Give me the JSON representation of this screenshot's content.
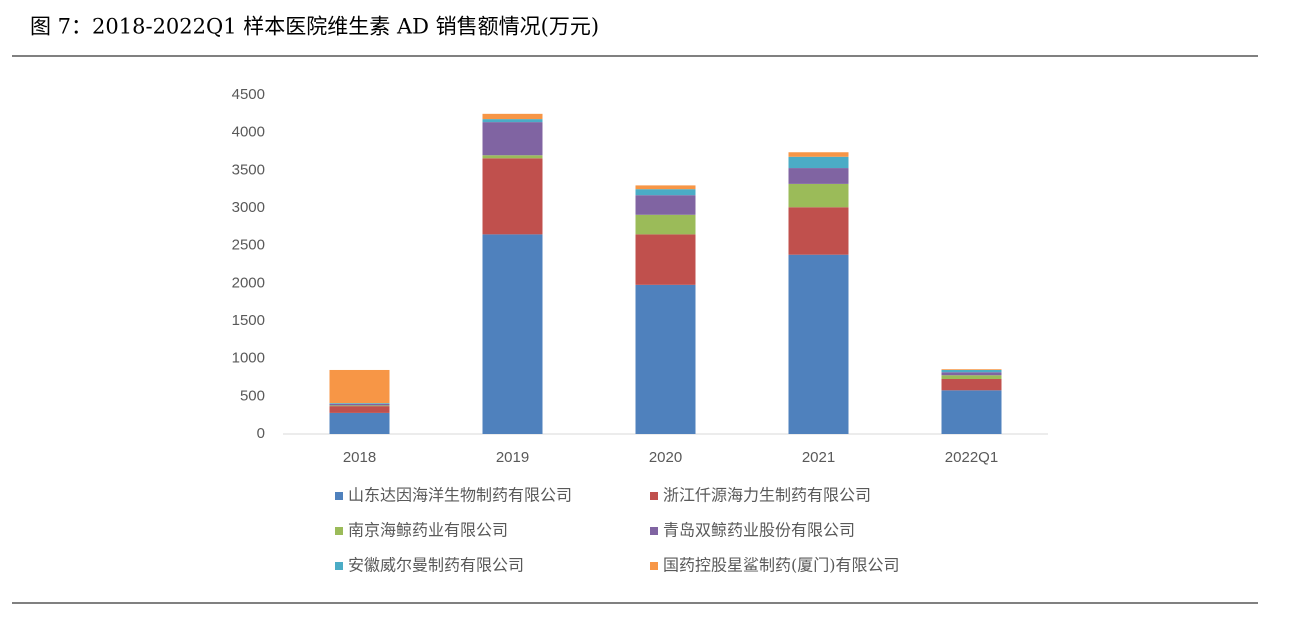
{
  "chart_data": {
    "type": "stacked_bar",
    "title": "图 7：2018-2022Q1 样本医院维生素 AD 销售额情况(万元)",
    "categories": [
      "2018",
      "2019",
      "2020",
      "2021",
      "2022Q1"
    ],
    "series": [
      {
        "name": "山东达因海洋生物制药有限公司",
        "color": "#4f81bd",
        "values": [
          280,
          2650,
          1980,
          2380,
          580
        ]
      },
      {
        "name": "浙江仟源海力生制药有限公司",
        "color": "#c0504d",
        "values": [
          90,
          1010,
          670,
          630,
          150
        ]
      },
      {
        "name": "南京海鲸药业有限公司",
        "color": "#9bbb59",
        "values": [
          10,
          40,
          260,
          310,
          50
        ]
      },
      {
        "name": "青岛双鲸药业股份有限公司",
        "color": "#8064a2",
        "values": [
          20,
          440,
          260,
          210,
          40
        ]
      },
      {
        "name": "安徽威尔曼制药有限公司",
        "color": "#4bacc6",
        "values": [
          10,
          40,
          80,
          150,
          30
        ]
      },
      {
        "name": "国药控股星鲨制药(厦门)有限公司",
        "color": "#f79646",
        "values": [
          440,
          70,
          50,
          60,
          10
        ]
      }
    ],
    "ylim": [
      0,
      4500
    ],
    "yticks": [
      0,
      500,
      1000,
      1500,
      2000,
      2500,
      3000,
      3500,
      4000,
      4500
    ]
  }
}
